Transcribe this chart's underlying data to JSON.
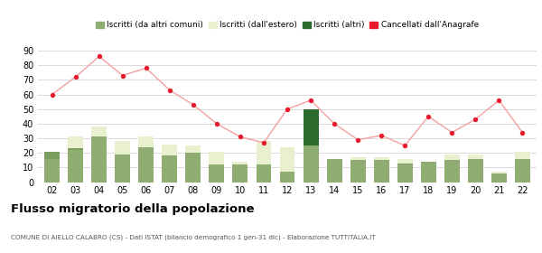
{
  "years": [
    "02",
    "03",
    "04",
    "05",
    "06",
    "07",
    "08",
    "09",
    "10",
    "11",
    "12",
    "13",
    "14",
    "15",
    "16",
    "17",
    "18",
    "19",
    "20",
    "21",
    "22"
  ],
  "iscritti_altri_comuni": [
    16,
    22,
    31,
    19,
    24,
    18,
    20,
    12,
    12,
    12,
    7,
    25,
    16,
    15,
    15,
    12,
    14,
    15,
    16,
    6,
    16
  ],
  "iscritti_estero": [
    5,
    9,
    7,
    9,
    7,
    8,
    5,
    9,
    2,
    16,
    17,
    0,
    0,
    2,
    2,
    4,
    0,
    4,
    3,
    1,
    5
  ],
  "iscritti_altri": [
    5,
    1,
    0,
    0,
    0,
    0,
    0,
    0,
    0,
    0,
    0,
    0,
    0,
    0,
    0,
    1,
    0,
    0,
    0,
    0,
    0
  ],
  "iscritti_altri_dark": [
    0,
    0,
    0,
    0,
    0,
    0,
    0,
    0,
    0,
    0,
    0,
    25,
    0,
    0,
    0,
    0,
    0,
    0,
    0,
    0,
    0
  ],
  "cancellati": [
    60,
    72,
    86,
    73,
    78,
    63,
    53,
    40,
    31,
    27,
    50,
    56,
    40,
    29,
    32,
    25,
    45,
    34,
    43,
    56,
    34
  ],
  "color_altri_comuni": "#8fad72",
  "color_estero": "#e8f0d0",
  "color_altri_dark": "#2d6a2d",
  "color_altri_light": "#7a9e60",
  "color_cancellati": "#e8192c",
  "color_cancellati_line": "#f5a0a0",
  "title": "Flusso migratorio della popolazione",
  "subtitle": "COMUNE DI AIELLO CALABRO (CS) - Dati ISTAT (bilancio demografico 1 gen-31 dic) - Elaborazione TUTTITALIA.IT",
  "legend_labels": [
    "Iscritti (da altri comuni)",
    "Iscritti (dall'estero)",
    "Iscritti (altri)",
    "Cancellati dall'Anagrafe"
  ],
  "ylim": [
    0,
    90
  ],
  "yticks": [
    0,
    10,
    20,
    30,
    40,
    50,
    60,
    70,
    80,
    90
  ],
  "bg_color": "#ffffff",
  "grid_color": "#cccccc"
}
